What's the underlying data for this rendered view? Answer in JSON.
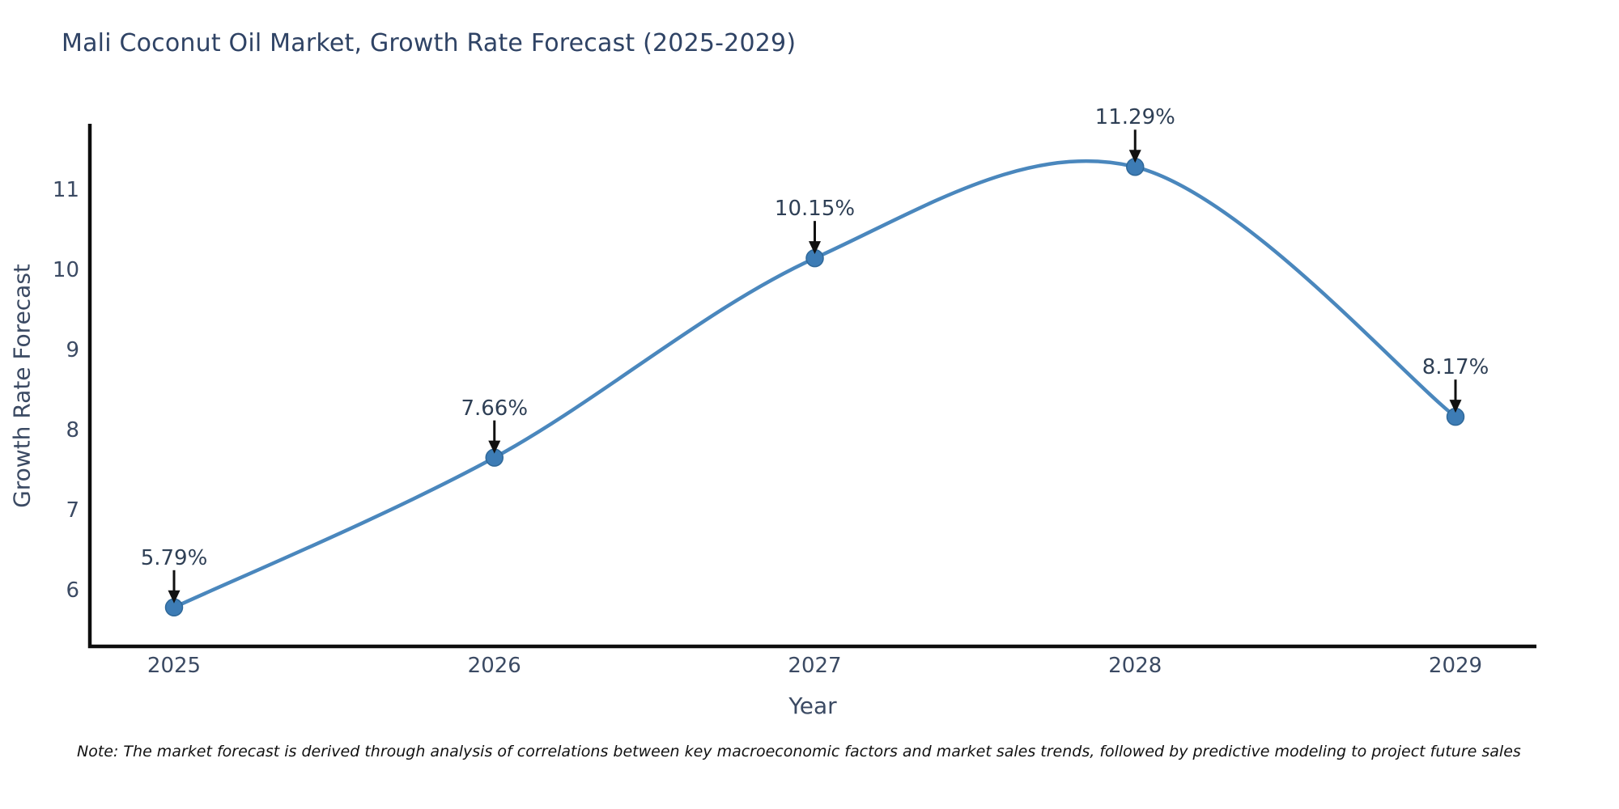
{
  "chart_data": {
    "type": "line",
    "title": "Mali Coconut Oil Market, Growth Rate Forecast (2025-2029)",
    "xlabel": "Year",
    "ylabel": "Growth Rate Forecast",
    "categories": [
      "2025",
      "2026",
      "2027",
      "2028",
      "2029"
    ],
    "series": [
      {
        "name": "Growth Rate Forecast",
        "values": [
          5.79,
          7.66,
          10.15,
          11.29,
          8.17
        ],
        "point_labels": [
          "5.79%",
          "7.66%",
          "10.15%",
          "11.29%",
          "8.17%"
        ]
      }
    ],
    "y_ticks": [
      6,
      7,
      8,
      9,
      10,
      11
    ],
    "ylim": [
      5.3,
      11.85
    ],
    "line_shape": "spline",
    "grid": false,
    "legend_position": "none",
    "annotation_style": "label-with-down-arrow",
    "colors": {
      "line": "#4a87bd",
      "marker": "#3d7cb5",
      "marker_edge": "#2f6899",
      "axis": "#0d0d0d",
      "arrow": "#111111",
      "title_text": "#2f4365",
      "tick_text": "#3b4a63"
    },
    "note": "Note: The market forecast is derived through analysis of correlations between key macroeconomic factors and market sales trends, followed by predictive modeling to project future sales"
  }
}
